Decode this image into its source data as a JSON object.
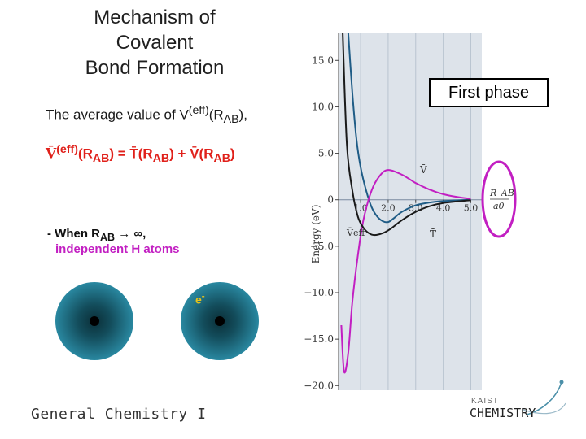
{
  "slide": {
    "title_lines": [
      "Mechanism of",
      "Covalent",
      "Bond Formation"
    ],
    "avg_text": "The average value of V",
    "avg_sup": "(eff)",
    "avg_tail": "(R",
    "avg_sub": "AB",
    "avg_end": "),",
    "eq_lhs": "V̄",
    "eq_lhs_sup": "(eff)",
    "eq_mid1": "(R",
    "eq_sub": "AB",
    "eq_mid2": ") = T̄(R",
    "eq_mid3": ") + V̄(R",
    "eq_end": ")",
    "when_text": "- When R",
    "when_sub": "AB",
    "when_tail": " → ∞,",
    "independent_text": "independent H atoms",
    "electron_label": "e",
    "electron_sup": "-",
    "footer": "General Chemistry I",
    "phase_label": "First phase",
    "logo_small": "KAIST",
    "logo_big": "CHEMISTRY",
    "colors": {
      "red": "#e0201a",
      "magenta": "#c21fc2",
      "navy": "#1f5c86",
      "atom": "#2a8aa3",
      "purple": "#8a1a6a"
    }
  },
  "chart_data": {
    "type": "line",
    "title": "",
    "xlabel": "R_AB / a0",
    "ylabel": "Energy (eV)",
    "x_ticks": [
      "1.0",
      "2.0",
      "3.0",
      "4.0",
      "5.0"
    ],
    "y_ticks": [
      "15.0",
      "10.0",
      "5.0",
      "0",
      "−5.0",
      "−10.0",
      "−15.0",
      "−20.0"
    ],
    "ylim": [
      -20.5,
      18
    ],
    "xlim": [
      0.2,
      5.4
    ],
    "series_labels": {
      "v": "V̄",
      "t": "T̄",
      "veff": "V̄eff",
      "r_label": "R_AB",
      "r_den": "a0"
    },
    "series": [
      {
        "name": "T̄",
        "color": "#1f5c86",
        "x": [
          0.55,
          0.7,
          0.85,
          1.0,
          1.2,
          1.4,
          1.6,
          1.8,
          2.0,
          2.2,
          2.5,
          3.0,
          3.5,
          4.0,
          5.0
        ],
        "y": [
          18,
          11.5,
          6.5,
          3.5,
          1.0,
          -0.8,
          -1.8,
          -2.3,
          -2.4,
          -2.0,
          -1.3,
          -0.6,
          -0.3,
          -0.15,
          0
        ]
      },
      {
        "name": "V̄",
        "color": "#c21fc2",
        "x": [
          0.3,
          0.4,
          0.55,
          0.7,
          0.9,
          1.1,
          1.4,
          1.7,
          2.0,
          2.5,
          3.0,
          3.5,
          4.0,
          4.5,
          5.0
        ],
        "y": [
          -13.5,
          -18.5,
          -16.5,
          -11,
          -6,
          -2.2,
          1.0,
          2.6,
          3.2,
          2.7,
          1.8,
          1.1,
          0.6,
          0.3,
          0.1
        ]
      },
      {
        "name": "V̄eff",
        "color": "#1a1a1a",
        "x": [
          0.35,
          0.5,
          0.7,
          0.9,
          1.1,
          1.3,
          1.5,
          1.8,
          2.1,
          2.5,
          3.0,
          3.5,
          4.0,
          5.0
        ],
        "y": [
          18,
          6,
          1.0,
          -1.8,
          -3.0,
          -3.6,
          -3.8,
          -3.6,
          -3.1,
          -2.2,
          -1.3,
          -0.7,
          -0.35,
          -0.05
        ]
      }
    ]
  }
}
